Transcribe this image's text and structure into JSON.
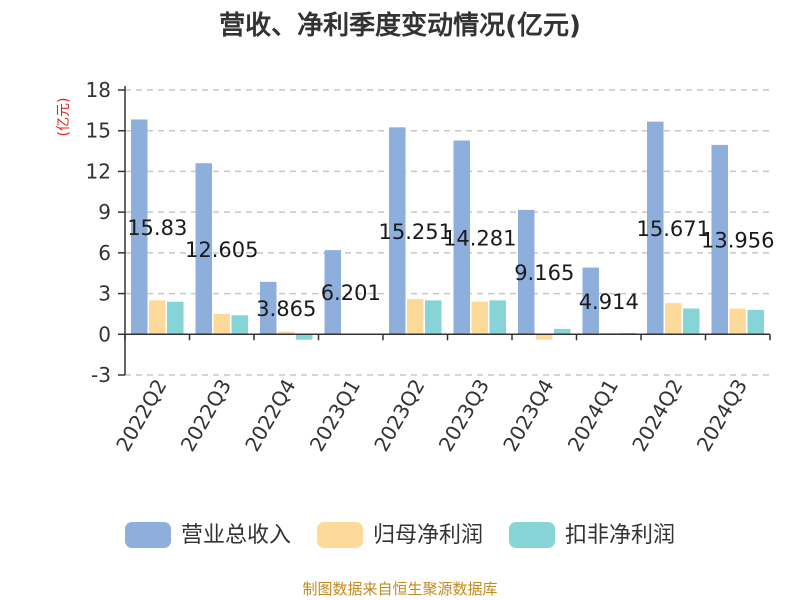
{
  "chart_data": {
    "type": "bar",
    "title": "营收、净利季度变动情况(亿元)",
    "ylabel": "(亿元)",
    "xlabel": "",
    "ylim": [
      -3,
      18
    ],
    "yticks": [
      "18",
      "15",
      "12",
      "9",
      "6",
      "3",
      "0",
      "-3"
    ],
    "ytick_values": [
      18,
      15,
      12,
      9,
      6,
      3,
      0,
      -3
    ],
    "grid": true,
    "legend_position": "bottom",
    "categories": [
      "2022Q2",
      "2022Q3",
      "2022Q4",
      "2023Q1",
      "2023Q2",
      "2023Q3",
      "2023Q4",
      "2024Q1",
      "2024Q2",
      "2024Q3"
    ],
    "series": [
      {
        "name": "营业总收入",
        "color": "#8eaedc",
        "values": [
          15.83,
          12.605,
          3.865,
          6.201,
          15.251,
          14.281,
          9.165,
          4.914,
          15.671,
          13.956
        ],
        "data_labels": [
          "15.83",
          "12.605",
          "3.865",
          "6.201",
          "15.251",
          "14.281",
          "9.165",
          "4.914",
          "15.671",
          "13.956"
        ]
      },
      {
        "name": "归母净利润",
        "color": "#fdd99a",
        "values": [
          2.5,
          1.5,
          0.2,
          0.05,
          2.6,
          2.4,
          -0.4,
          0.1,
          2.3,
          1.9
        ]
      },
      {
        "name": "扣非净利润",
        "color": "#86d4d6",
        "values": [
          2.4,
          1.4,
          -0.4,
          0.05,
          2.5,
          2.5,
          0.4,
          0.1,
          1.9,
          1.8
        ]
      }
    ],
    "source": "制图数据来自恒生聚源数据库"
  }
}
